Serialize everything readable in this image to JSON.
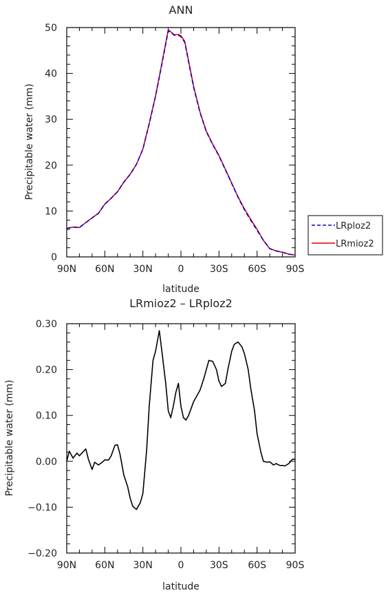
{
  "chart_data": [
    {
      "type": "line",
      "title": "ANN",
      "xlabel": "latitude",
      "ylabel": "Precipitable water (mm)",
      "xlim": [
        90,
        -90
      ],
      "ylim": [
        0,
        50
      ],
      "x_ticks": [
        90,
        60,
        30,
        0,
        -30,
        -60,
        -90
      ],
      "x_tick_labels": [
        "90N",
        "60N",
        "30N",
        "0",
        "30S",
        "60S",
        "90S"
      ],
      "y_ticks": [
        0,
        10,
        20,
        30,
        40,
        50
      ],
      "y_tick_labels": [
        "0",
        "10",
        "20",
        "30",
        "40",
        "50"
      ],
      "grid": false,
      "legend_position": "right, outside plot",
      "series": [
        {
          "name": "LRploz2",
          "color": "#0000cc",
          "style": "dashed",
          "x": [
            90,
            85,
            80,
            75,
            70,
            65,
            60,
            55,
            50,
            45,
            40,
            35,
            30,
            25,
            20,
            15,
            10,
            5,
            2,
            0,
            -3,
            -5,
            -10,
            -15,
            -20,
            -25,
            -30,
            -35,
            -40,
            -45,
            -50,
            -55,
            -60,
            -65,
            -70,
            -75,
            -80,
            -85,
            -90
          ],
          "y": [
            6.2,
            6.5,
            6.4,
            7.5,
            8.5,
            9.5,
            11.5,
            12.8,
            14.2,
            16.3,
            18.0,
            20.2,
            23.5,
            29.0,
            35.0,
            42.0,
            49.3,
            48.3,
            48.3,
            48.0,
            46.8,
            44.0,
            37.0,
            31.5,
            27.3,
            24.5,
            22.0,
            19.0,
            16.0,
            13.0,
            10.3,
            8.0,
            5.8,
            3.6,
            1.8,
            1.3,
            1.0,
            0.6,
            0.4
          ]
        },
        {
          "name": "LRmioz2",
          "color": "#dd0000",
          "style": "solid",
          "x": [
            90,
            85,
            80,
            75,
            70,
            65,
            60,
            55,
            50,
            45,
            40,
            35,
            30,
            25,
            20,
            15,
            10,
            5,
            2,
            0,
            -3,
            -5,
            -10,
            -15,
            -20,
            -25,
            -30,
            -35,
            -40,
            -45,
            -50,
            -55,
            -60,
            -65,
            -70,
            -75,
            -80,
            -85,
            -90
          ],
          "y": [
            6.2,
            6.5,
            6.4,
            7.5,
            8.5,
            9.5,
            11.5,
            12.8,
            14.2,
            16.3,
            18.0,
            20.2,
            23.5,
            29.1,
            35.1,
            42.2,
            49.5,
            48.4,
            48.5,
            48.2,
            47.0,
            44.2,
            37.2,
            31.6,
            27.4,
            24.6,
            22.1,
            19.1,
            16.1,
            13.1,
            10.5,
            8.2,
            6.0,
            3.6,
            1.8,
            1.3,
            1.0,
            0.6,
            0.4
          ]
        }
      ]
    },
    {
      "type": "line",
      "title": "LRmioz2 – LRploz2",
      "xlabel": "latitude",
      "ylabel": "Precipitable water (mm)",
      "xlim": [
        90,
        -90
      ],
      "ylim": [
        -0.2,
        0.3
      ],
      "x_ticks": [
        90,
        60,
        30,
        0,
        -30,
        -60,
        -90
      ],
      "x_tick_labels": [
        "90N",
        "60N",
        "30N",
        "0",
        "30S",
        "60S",
        "90S"
      ],
      "y_ticks": [
        -0.2,
        -0.1,
        0.0,
        0.1,
        0.2,
        0.3
      ],
      "y_tick_labels": [
        "−0.20",
        "−0.10",
        "0.00",
        "0.10",
        "0.20",
        "0.30"
      ],
      "grid": false,
      "series": [
        {
          "color": "#000000",
          "style": "solid",
          "x": [
            90,
            88,
            85,
            82,
            80,
            78,
            75,
            73,
            70,
            68,
            65,
            62,
            60,
            57,
            55,
            52,
            50,
            48,
            45,
            42,
            40,
            38,
            35,
            32,
            30,
            27,
            25,
            22,
            20,
            17,
            15,
            12,
            10,
            8,
            6,
            4,
            2,
            0,
            -2,
            -4,
            -6,
            -8,
            -10,
            -12,
            -15,
            -18,
            -20,
            -22,
            -25,
            -28,
            -30,
            -32,
            -35,
            -37,
            -40,
            -42,
            -45,
            -48,
            -50,
            -53,
            -55,
            -58,
            -60,
            -63,
            -65,
            -68,
            -70,
            -73,
            -75,
            -78,
            -80,
            -82,
            -85,
            -88,
            -90
          ],
          "y": [
            0.0,
            0.022,
            0.007,
            0.018,
            0.012,
            0.018,
            0.027,
            0.005,
            -0.018,
            -0.002,
            -0.008,
            -0.002,
            0.003,
            0.003,
            0.012,
            0.035,
            0.036,
            0.015,
            -0.03,
            -0.055,
            -0.08,
            -0.098,
            -0.105,
            -0.09,
            -0.07,
            0.025,
            0.12,
            0.22,
            0.24,
            0.285,
            0.24,
            0.17,
            0.11,
            0.095,
            0.12,
            0.15,
            0.17,
            0.12,
            0.095,
            0.09,
            0.1,
            0.115,
            0.13,
            0.14,
            0.155,
            0.18,
            0.2,
            0.22,
            0.218,
            0.2,
            0.175,
            0.163,
            0.17,
            0.2,
            0.24,
            0.255,
            0.26,
            0.25,
            0.235,
            0.2,
            0.16,
            0.11,
            0.06,
            0.02,
            0.0,
            -0.002,
            -0.001,
            -0.008,
            -0.005,
            -0.009,
            -0.009,
            -0.01,
            -0.005,
            0.005,
            0.004
          ]
        }
      ]
    }
  ]
}
